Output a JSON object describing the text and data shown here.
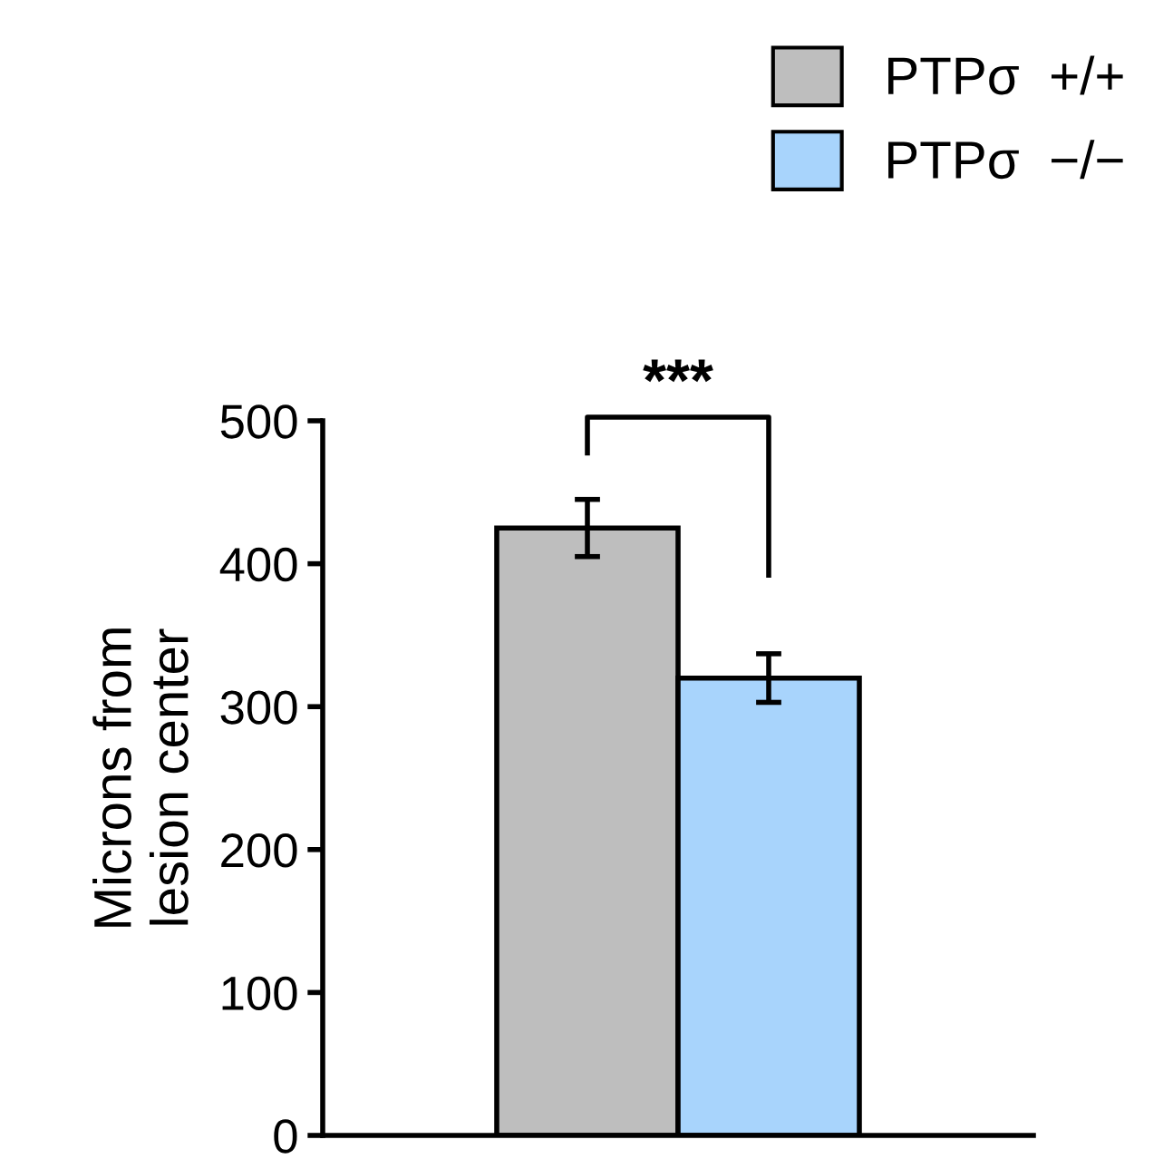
{
  "chart_data": {
    "type": "bar",
    "ylabel": "Microns from\nlesion center",
    "categories": [
      null
    ],
    "series": [
      {
        "name": "PTPσ  +/+",
        "color": "#bebebe",
        "values": [
          425
        ],
        "errors": [
          20
        ]
      },
      {
        "name": "PTPσ  −/−",
        "color": "#a8d4fc",
        "values": [
          320
        ],
        "errors": [
          17
        ]
      }
    ],
    "ylim": [
      0,
      500
    ],
    "yticks": [
      0,
      100,
      200,
      300,
      400,
      500
    ],
    "grid": false,
    "legend": "top right",
    "annotations": [
      "***"
    ]
  }
}
